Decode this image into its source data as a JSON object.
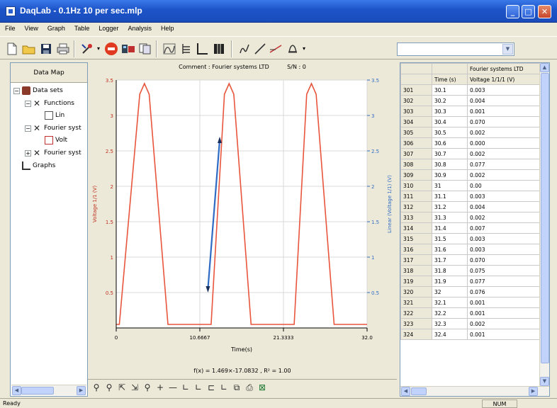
{
  "window": {
    "title": "DaqLab - 0.1Hz 10 per sec.mlp"
  },
  "menu": [
    "File",
    "View",
    "Graph",
    "Table",
    "Logger",
    "Analysis",
    "Help"
  ],
  "toolbar": {
    "combo_value": ""
  },
  "left_panel": {
    "header": "Data Map",
    "tree": {
      "data_sets": "Data sets",
      "functions": "Functions",
      "lin": "Lin",
      "fourier1": "Fourier syst",
      "volt": "Volt",
      "fourier2": "Fourier syst",
      "graphs": "Graphs"
    }
  },
  "chart_header": {
    "comment": "Comment : Fourier systems LTD",
    "sn": "S/N : 0"
  },
  "fit_label": "f(x) = 1.469×-17.0832 , R² = 1.00",
  "chart_data": {
    "type": "line",
    "xlabel": "Time(s)",
    "ylabel_left": "Voltage 1/1 (V)",
    "ylabel_right": "Linear (Voltage 1/1) (V)",
    "xlim": [
      0,
      32
    ],
    "ylim": [
      0,
      3.5
    ],
    "x_ticks": [
      "0",
      "10.6667",
      "21.3333",
      "32.0"
    ],
    "y_ticks_left": [
      "0.5",
      "1",
      "1.5",
      "2",
      "2.5",
      "3",
      "3.5"
    ],
    "y_ticks_right": [
      "0.5",
      "1",
      "1.5",
      "2",
      "2.5",
      "3",
      "3.5"
    ],
    "grid": true,
    "series": [
      {
        "color": "#e8553c",
        "x": [
          0,
          0.4,
          3.0,
          3.6,
          4.2,
          6.6,
          7.1,
          11.6,
          12.1,
          13.8,
          14.4,
          15.0,
          17.2,
          17.7,
          22.2,
          22.7,
          24.3,
          24.9,
          25.5,
          27.8,
          28.3,
          32.0
        ],
        "y": [
          0.05,
          0.05,
          3.3,
          3.45,
          3.3,
          0.05,
          0.05,
          0.05,
          0.05,
          3.3,
          3.45,
          3.3,
          0.05,
          0.05,
          0.05,
          0.05,
          3.3,
          3.45,
          3.3,
          0.05,
          0.05,
          0.05
        ]
      },
      {
        "color": "#2f6bc4",
        "x": [
          11.7,
          13.2
        ],
        "y": [
          0.55,
          2.65
        ]
      }
    ]
  },
  "table": {
    "header_top": "Fourier systems LTD",
    "col_time": "Time (s)",
    "col_voltage": "Voltage 1/1/1 (V)",
    "rows": [
      [
        "301",
        "30.1",
        "0.003"
      ],
      [
        "302",
        "30.2",
        "0.004"
      ],
      [
        "303",
        "30.3",
        "0.001"
      ],
      [
        "304",
        "30.4",
        "0.070"
      ],
      [
        "305",
        "30.5",
        "0.002"
      ],
      [
        "306",
        "30.6",
        "0.000"
      ],
      [
        "307",
        "30.7",
        "0.002"
      ],
      [
        "308",
        "30.8",
        "0.077"
      ],
      [
        "309",
        "30.9",
        "0.002"
      ],
      [
        "310",
        "31",
        "0.00"
      ],
      [
        "311",
        "31.1",
        "0.003"
      ],
      [
        "312",
        "31.2",
        "0.004"
      ],
      [
        "313",
        "31.3",
        "0.002"
      ],
      [
        "314",
        "31.4",
        "0.007"
      ],
      [
        "315",
        "31.5",
        "0.003"
      ],
      [
        "316",
        "31.6",
        "0.003"
      ],
      [
        "317",
        "31.7",
        "0.070"
      ],
      [
        "318",
        "31.8",
        "0.075"
      ],
      [
        "319",
        "31.9",
        "0.077"
      ],
      [
        "320",
        "32",
        "0.076"
      ],
      [
        "321",
        "32.1",
        "0.001"
      ],
      [
        "322",
        "32.2",
        "0.001"
      ],
      [
        "323",
        "32.3",
        "0.002"
      ],
      [
        "324",
        "32.4",
        "0.001"
      ]
    ]
  },
  "status": {
    "left": "Ready",
    "num": "NUM"
  }
}
